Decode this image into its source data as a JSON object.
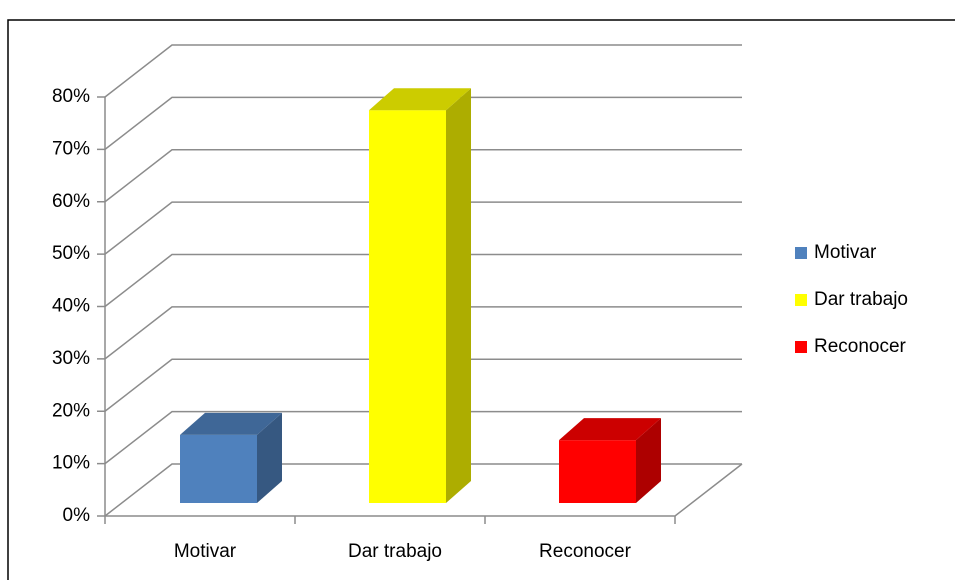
{
  "chart_data": {
    "type": "bar3d",
    "categories": [
      "Motivar",
      "Dar trabajo",
      "Reconocer"
    ],
    "values": [
      13,
      75,
      12
    ],
    "colors": [
      "#4f81bd",
      "#ffff00",
      "#ff0000"
    ],
    "ylim": [
      0,
      80
    ],
    "yticks": [
      {
        "value": 0,
        "label": "0%"
      },
      {
        "value": 10,
        "label": "10%"
      },
      {
        "value": 20,
        "label": "20%"
      },
      {
        "value": 30,
        "label": "30%"
      },
      {
        "value": 40,
        "label": "40%"
      },
      {
        "value": 50,
        "label": "50%"
      },
      {
        "value": 60,
        "label": "60%"
      },
      {
        "value": 70,
        "label": "70%"
      },
      {
        "value": 80,
        "label": "80%"
      }
    ],
    "grid": true,
    "legend": "right"
  }
}
